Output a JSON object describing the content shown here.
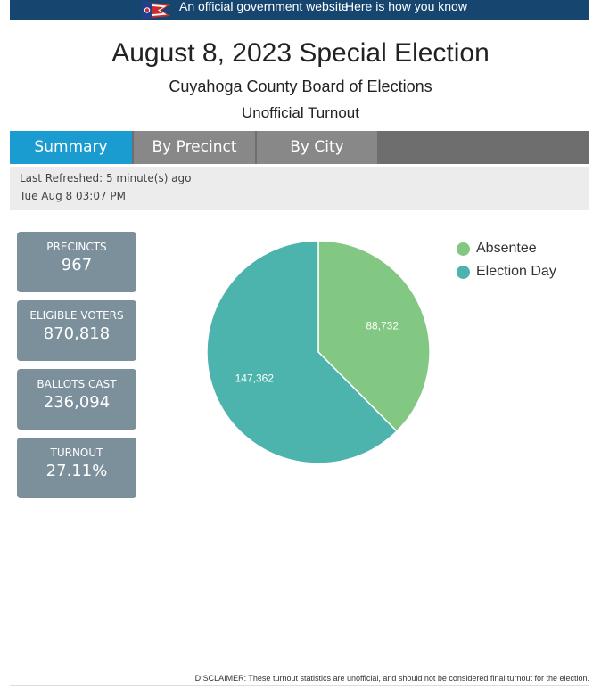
{
  "banner": {
    "text": "An official government website.",
    "link": "Here is how you know"
  },
  "header": {
    "title": "August 8, 2023 Special Election",
    "subtitle": "Cuyahoga County Board of Elections",
    "subtitle2": "Unofficial Turnout"
  },
  "tabs": [
    "Summary",
    "By Precinct",
    "By City"
  ],
  "active_tab": "Summary",
  "refresh": {
    "last_refreshed": "Last Refreshed: 5 minute(s) ago",
    "timestamp": "Tue Aug 8 03:07 PM"
  },
  "stats": [
    {
      "label": "PRECINCTS",
      "value": "967"
    },
    {
      "label": "ELIGIBLE VOTERS",
      "value": "870,818"
    },
    {
      "label": "BALLOTS CAST",
      "value": "236,094"
    },
    {
      "label": "TURNOUT",
      "value": "27.11%"
    }
  ],
  "chart_data": {
    "type": "pie",
    "categories": [
      "Absentee",
      "Election Day"
    ],
    "values": [
      88732,
      147362
    ],
    "data_labels": [
      "88,732",
      "147,362"
    ],
    "colors": [
      "#82c882",
      "#4db3ad"
    ],
    "legend_position": "top-right"
  },
  "disclaimer": "DISCLAIMER: These turnout statistics are unofficial, and should not be considered final turnout for the election."
}
